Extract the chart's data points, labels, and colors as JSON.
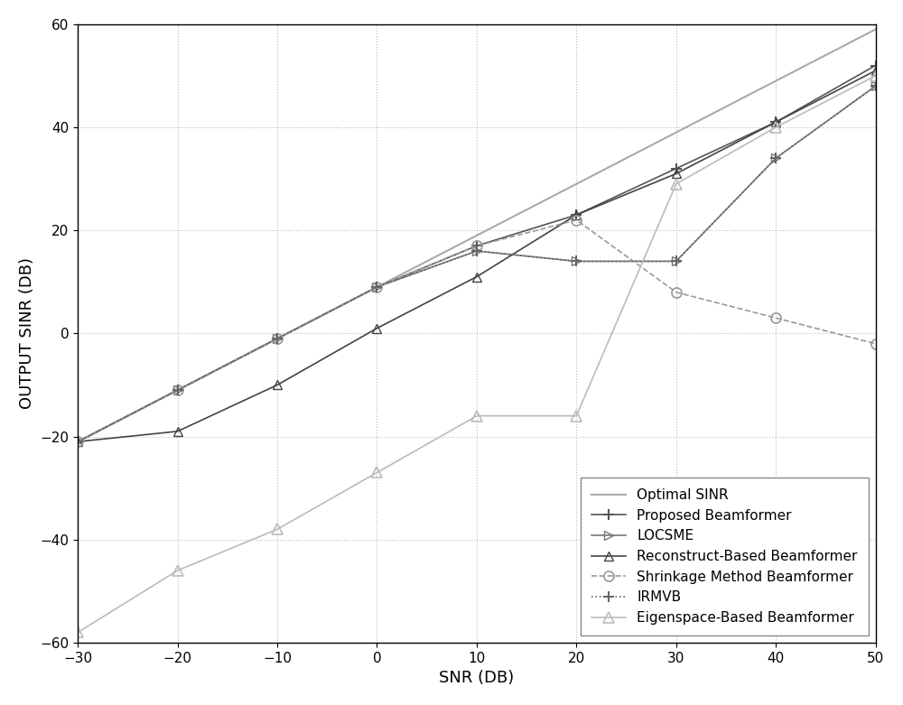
{
  "snr": [
    -30,
    -20,
    -10,
    0,
    10,
    20,
    30,
    40,
    50
  ],
  "optimal_sinr": [
    -21,
    -11,
    -1,
    9,
    19,
    29,
    39,
    49,
    59
  ],
  "proposed_beamformer": [
    -21,
    -11,
    -1,
    9,
    17,
    23,
    32,
    41,
    52
  ],
  "locsme": [
    -21,
    -11,
    -1,
    9,
    16,
    14,
    14,
    34,
    48
  ],
  "reconstruct_based": [
    -21,
    -19,
    -10,
    1,
    11,
    23,
    31,
    41,
    51
  ],
  "shrinkage_method": [
    -21,
    -11,
    -1,
    9,
    17,
    22,
    8,
    3,
    -2
  ],
  "irmvb": [
    -21,
    -11,
    -1,
    9,
    16,
    14,
    14,
    34,
    48
  ],
  "eigenspace_based": [
    -58,
    -46,
    -38,
    -27,
    -16,
    -16,
    29,
    40,
    50
  ],
  "xlabel": "SNR (DB)",
  "ylabel": "OUTPUT SINR (DB)",
  "xlim": [
    -30,
    50
  ],
  "ylim": [
    -60,
    60
  ],
  "xticks": [
    -30,
    -20,
    -10,
    0,
    10,
    20,
    30,
    40,
    50
  ],
  "yticks": [
    -60,
    -40,
    -20,
    0,
    20,
    40,
    60
  ],
  "legend_labels": [
    "Optimal SINR",
    "Proposed Beamformer",
    "LOCSME",
    "Reconstruct-Based Beamformer",
    "Shrinkage Method Beamformer",
    "IRMVB",
    "Eigenspace-Based Beamformer"
  ],
  "color_optimal": "#aaaaaa",
  "color_proposed": "#555555",
  "color_locsme": "#777777",
  "color_reconstruct": "#444444",
  "color_shrinkage": "#999999",
  "color_irmvb": "#666666",
  "color_eigenspace": "#bbbbbb",
  "bg_color": "#ffffff",
  "grid_color": "#aaaaaa",
  "fontsize_label": 13,
  "fontsize_tick": 11,
  "fontsize_legend": 11
}
